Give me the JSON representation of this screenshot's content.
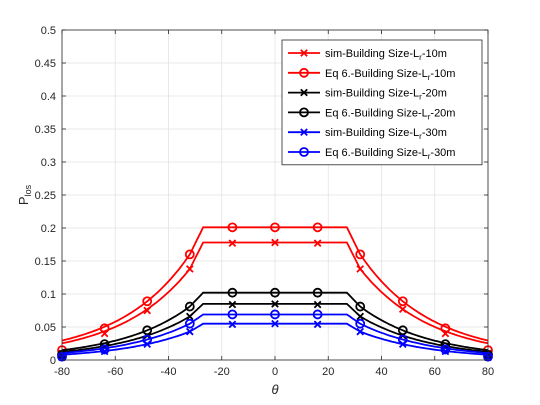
{
  "chart_data": {
    "type": "line",
    "title": "",
    "xlabel": "θ",
    "ylabel": "P",
    "ylabel_sub": "los",
    "xlim": [
      -80,
      80
    ],
    "ylim": [
      0,
      0.5
    ],
    "xticks": [
      -80,
      -60,
      -40,
      -20,
      0,
      20,
      40,
      60,
      80
    ],
    "yticks": [
      "0",
      "0.05",
      "0.1",
      "0.15",
      "0.2",
      "0.25",
      "0.3",
      "0.35",
      "0.4",
      "0.45",
      "0.5"
    ],
    "grid": true,
    "legend_position": "top-right",
    "series": [
      {
        "name": "sim-Building Size-L_r-10m",
        "label_main": "sim-Building Size-L",
        "label_sub": "r",
        "label_end": "-10m",
        "color": "#ff0000",
        "marker": "x",
        "style": "solid",
        "x": [
          -80,
          -64,
          -48,
          -32,
          -16,
          0,
          16,
          32,
          48,
          64,
          80
        ],
        "y": [
          0.01,
          0.04,
          0.075,
          0.138,
          0.177,
          0.178,
          0.177,
          0.138,
          0.077,
          0.04,
          0.01
        ]
      },
      {
        "name": "Eq 6.-Building Size-L_r-10m",
        "label_main": "Eq 6.-Building Size-L",
        "label_sub": "r",
        "label_end": "-10m",
        "color": "#ff0000",
        "marker": "o",
        "style": "solid",
        "x": [
          -80,
          -64,
          -48,
          -32,
          -16,
          0,
          16,
          32,
          48,
          64,
          80
        ],
        "y": [
          0.015,
          0.048,
          0.089,
          0.16,
          0.201,
          0.201,
          0.201,
          0.16,
          0.089,
          0.048,
          0.015
        ]
      },
      {
        "name": "sim-Building Size-L_r-20m",
        "label_main": "sim-Building Size-L",
        "label_sub": "r",
        "label_end": "-20m",
        "color": "#000000",
        "marker": "x",
        "style": "solid",
        "x": [
          -80,
          -64,
          -48,
          -32,
          -16,
          0,
          16,
          32,
          48,
          64,
          80
        ],
        "y": [
          0.006,
          0.02,
          0.037,
          0.066,
          0.084,
          0.085,
          0.084,
          0.066,
          0.037,
          0.02,
          0.006
        ]
      },
      {
        "name": "Eq 6.-Building Size-L_r-20m",
        "label_main": "Eq 6.-Building Size-L",
        "label_sub": "r",
        "label_end": "-20m",
        "color": "#000000",
        "marker": "o",
        "style": "solid",
        "x": [
          -80,
          -64,
          -48,
          -32,
          -16,
          0,
          16,
          32,
          48,
          64,
          80
        ],
        "y": [
          0.008,
          0.024,
          0.045,
          0.081,
          0.102,
          0.102,
          0.102,
          0.081,
          0.045,
          0.024,
          0.008
        ]
      },
      {
        "name": "sim-Building Size-L_r-30m",
        "label_main": "sim-Building Size-L",
        "label_sub": "r",
        "label_end": "-30m",
        "color": "#0000ff",
        "marker": "x",
        "style": "solid",
        "x": [
          -80,
          -64,
          -48,
          -32,
          -16,
          0,
          16,
          32,
          48,
          64,
          80
        ],
        "y": [
          0.004,
          0.013,
          0.024,
          0.043,
          0.054,
          0.055,
          0.054,
          0.043,
          0.024,
          0.013,
          0.004
        ]
      },
      {
        "name": "Eq 6.-Building Size-L_r-30m",
        "label_main": "Eq 6.-Building Size-L",
        "label_sub": "r",
        "label_end": "-30m",
        "color": "#0000ff",
        "marker": "o",
        "style": "solid",
        "x": [
          -80,
          -64,
          -48,
          -32,
          -16,
          0,
          16,
          32,
          48,
          64,
          80
        ],
        "y": [
          0.005,
          0.016,
          0.031,
          0.055,
          0.069,
          0.069,
          0.069,
          0.055,
          0.031,
          0.016,
          0.005
        ]
      }
    ]
  }
}
